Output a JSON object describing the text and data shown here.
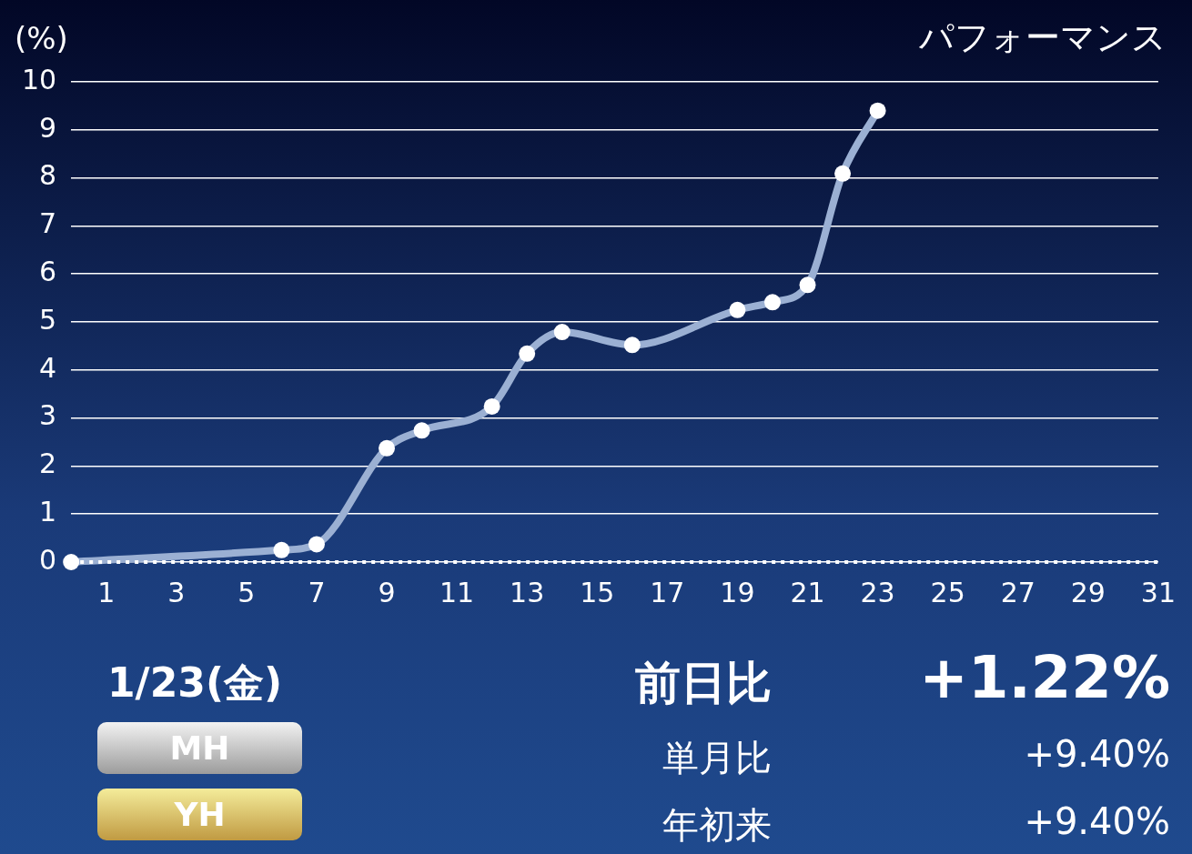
{
  "chart_data": {
    "type": "line",
    "title": "パフォーマンス",
    "ylabel": "(%)",
    "x": [
      0,
      6,
      7,
      9,
      10,
      12,
      13,
      14,
      16,
      19,
      20,
      21,
      22,
      23
    ],
    "series": [
      {
        "color": "#9bb0d3",
        "values": [
          0,
          0.25,
          0.37,
          2.37,
          2.74,
          3.24,
          4.34,
          4.79,
          4.52,
          5.25,
          5.41,
          5.77,
          8.09,
          9.4
        ]
      }
    ],
    "xlim": [
      0,
      31
    ],
    "xticks": [
      1,
      3,
      5,
      7,
      9,
      11,
      13,
      15,
      17,
      19,
      21,
      23,
      25,
      27,
      29,
      31
    ],
    "ylim": [
      0,
      10
    ],
    "yticks": [
      0,
      1,
      2,
      3,
      4,
      5,
      6,
      7,
      8,
      9,
      10
    ],
    "grid": "y",
    "legend": false,
    "marker": "circle",
    "line_style": "solid",
    "ref_lines": [
      {
        "axis": "y",
        "value": 0,
        "color": "#ffffff",
        "line_style": "dotted"
      }
    ],
    "annotations": [
      "1/23(金)",
      "MH",
      "YH",
      "前日比",
      "+1.22%",
      "単月比",
      "+9.40%",
      "年初来",
      "+9.40%"
    ]
  }
}
